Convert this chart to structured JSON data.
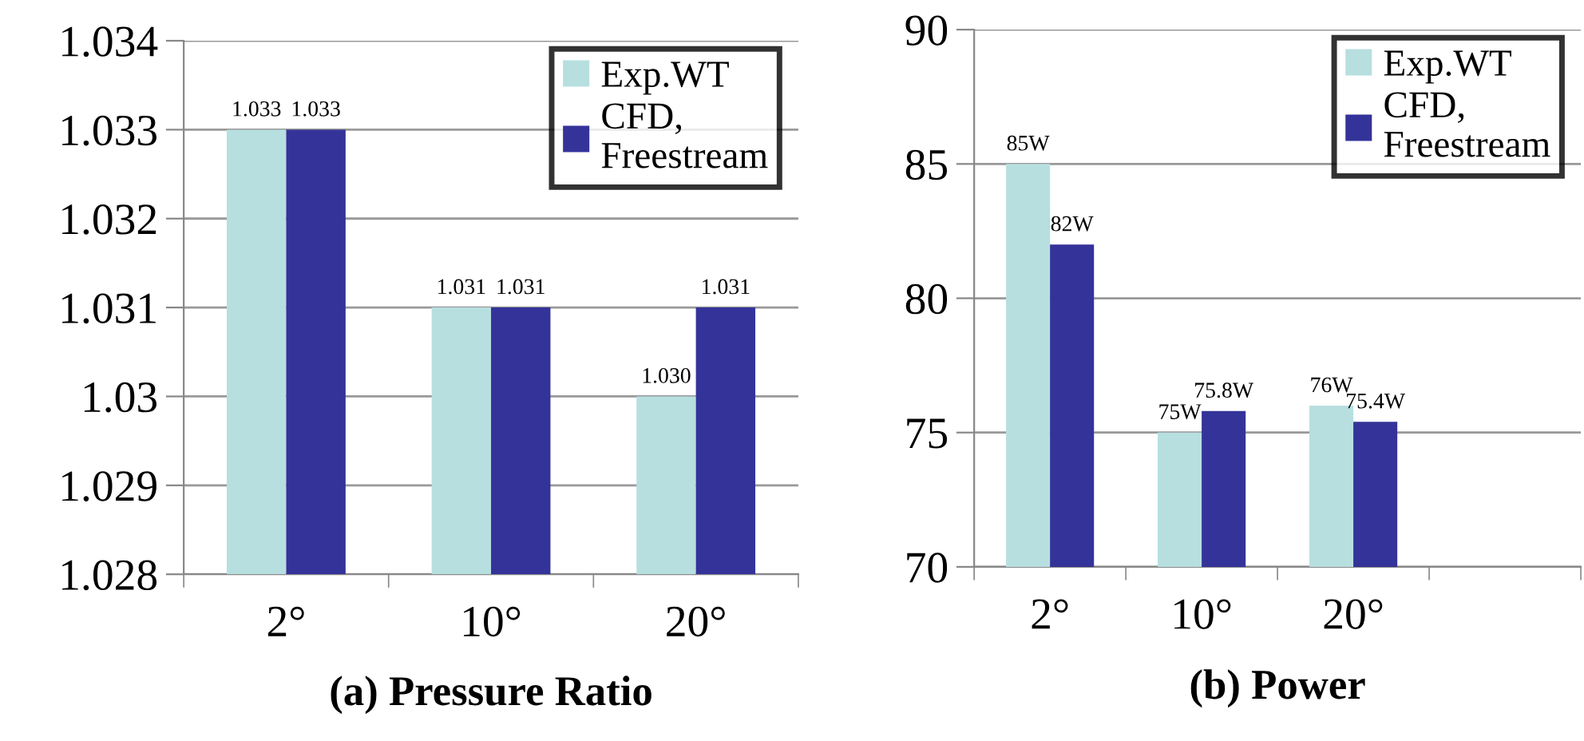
{
  "chart_data": [
    {
      "type": "bar",
      "title": "(a) Pressure Ratio",
      "categories": [
        "2°",
        "10°",
        "20°"
      ],
      "series": [
        {
          "name": "Exp.WT",
          "color": "#b7dfe0",
          "values": [
            1.033,
            1.031,
            1.03
          ],
          "value_labels": [
            "1.033",
            "1.031",
            "1.030"
          ]
        },
        {
          "name": "CFD,\nFreestream",
          "color": "#343399",
          "values": [
            1.033,
            1.031,
            1.031
          ],
          "value_labels": [
            "1.033",
            "1.031",
            "1.031"
          ]
        }
      ],
      "ylim": [
        1.028,
        1.034
      ],
      "yticks": [
        1.028,
        1.029,
        {
          "value": 1.03,
          "label": "1.03"
        },
        1.031,
        1.032,
        1.033,
        1.034
      ],
      "grid": "y",
      "legend": "top right"
    },
    {
      "type": "bar",
      "title": "(b) Power",
      "categories": [
        "2°",
        "10°",
        "20°",
        null
      ],
      "series": [
        {
          "name": "Exp.WT",
          "color": "#b7dfe0",
          "values": [
            85,
            75,
            76,
            null
          ],
          "value_labels": [
            "85W",
            "75W",
            "76W",
            null
          ]
        },
        {
          "name": "CFD,\nFreestream",
          "color": "#343399",
          "values": [
            82,
            75.8,
            75.4,
            null
          ],
          "value_labels": [
            "82W",
            "75.8W",
            "75.4W",
            null
          ]
        }
      ],
      "ylim": [
        70,
        90
      ],
      "yticks": [
        70,
        75,
        80,
        85,
        90
      ],
      "grid": "y",
      "legend": "top right"
    }
  ]
}
